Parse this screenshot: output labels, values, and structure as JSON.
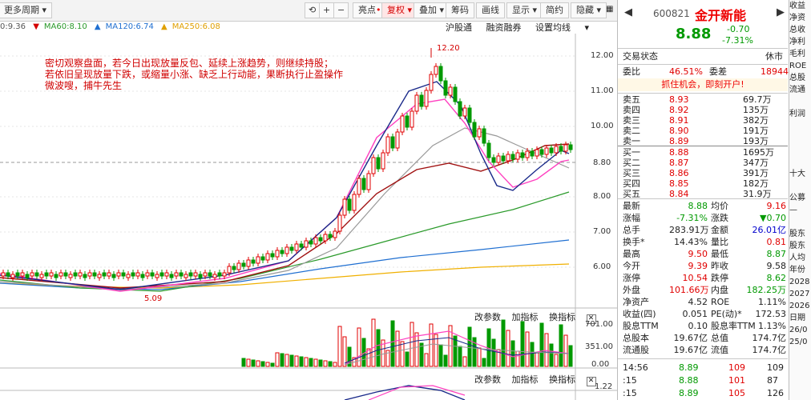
{
  "toolbar": {
    "period": "更多周期",
    "highlight": "亮点",
    "fuquan": "复权",
    "overlay": "叠加",
    "chips": "筹码",
    "draw": "画线",
    "display": "显示",
    "brief": "简约",
    "hide": "隐藏"
  },
  "ma_legend": {
    "ma_a": "0:9.36",
    "ma60": "MA60:8.10",
    "ma120": "MA120:6.74",
    "ma250": "MA250:6.08"
  },
  "tabs": {
    "hgt": "沪股通",
    "margin": "融资融券",
    "ma_settings": "设置均线"
  },
  "price_axis": [
    "12.00",
    "11.00",
    "10.00",
    "8.80",
    "8.00",
    "7.00",
    "6.00"
  ],
  "annotation": {
    "line1": "密切观察盘面，若今日出现放量反包、延续上涨趋势，则继续持股；",
    "line2": "若依旧呈现放量下跌，或缩量小涨、缺乏上行动能，果断执行止盈操作",
    "line3": "微波嗖，捕牛先生"
  },
  "high_label": "12.20",
  "low_label": "5.09",
  "sub1": {
    "params": "改参数",
    "add": "加指标",
    "switch": "换指标",
    "close": "✕",
    "axis": [
      "701.00",
      "351.00",
      "0.00"
    ]
  },
  "sub2": {
    "params": "改参数",
    "add": "加指标",
    "switch": "换指标",
    "close": "✕",
    "axis": [
      "1.22"
    ]
  },
  "stock": {
    "code": "600821",
    "name": "金开新能",
    "price": "8.88",
    "change": "-0.70",
    "pct": "-7.31%"
  },
  "trade": {
    "status_label": "交易状态",
    "status": "休市",
    "ratio_label": "委比",
    "ratio": "46.51%",
    "diff_label": "委差",
    "diff": "18944",
    "promo": "抓住机会，即刻开户!"
  },
  "asks": [
    {
      "l": "卖五",
      "p": "8.93",
      "v": "69.7万"
    },
    {
      "l": "卖四",
      "p": "8.92",
      "v": "135万"
    },
    {
      "l": "卖三",
      "p": "8.91",
      "v": "382万"
    },
    {
      "l": "卖二",
      "p": "8.90",
      "v": "191万"
    },
    {
      "l": "卖一",
      "p": "8.89",
      "v": "193万"
    }
  ],
  "bids": [
    {
      "l": "买一",
      "p": "8.88",
      "v": "1695万"
    },
    {
      "l": "买二",
      "p": "8.87",
      "v": "347万"
    },
    {
      "l": "买三",
      "p": "8.86",
      "v": "391万"
    },
    {
      "l": "买四",
      "p": "8.85",
      "v": "182万"
    },
    {
      "l": "买五",
      "p": "8.84",
      "v": "31.9万"
    }
  ],
  "stats": [
    [
      "最新",
      "8.88",
      "均价",
      "9.16"
    ],
    [
      "涨幅",
      "-7.31%",
      "涨跌",
      "▼0.70"
    ],
    [
      "总手",
      "283.91万",
      "金额",
      "26.01亿"
    ],
    [
      "换手*",
      "14.43%",
      "量比",
      "0.81"
    ],
    [
      "最高",
      "9.50",
      "最低",
      "8.87"
    ],
    [
      "今开",
      "9.39",
      "昨收",
      "9.58"
    ],
    [
      "涨停",
      "10.54",
      "跌停",
      "8.62"
    ],
    [
      "外盘",
      "101.66万",
      "内盘",
      "182.25万"
    ],
    [
      "净资产",
      "4.52",
      "ROE",
      "1.11%"
    ],
    [
      "收益(四)",
      "0.051",
      "PE(动)*",
      "172.53"
    ],
    [
      "股息TTM",
      "0.10",
      "股息率TTM",
      "1.13%"
    ],
    [
      "总股本",
      "19.67亿",
      "总值",
      "174.7亿"
    ],
    [
      "流通股",
      "19.67亿",
      "流值",
      "174.7亿"
    ]
  ],
  "ticks": [
    [
      "14:56",
      "8.89",
      "109",
      "109"
    ],
    [
      ":15",
      "8.88",
      "101",
      "87"
    ],
    [
      ":15",
      "8.89",
      "105",
      "126"
    ]
  ],
  "far": [
    "收益",
    "净资",
    "总收",
    "净利",
    "毛利",
    "ROE",
    "总股",
    "流通",
    "",
    "利润",
    "",
    "",
    "",
    "",
    "十大",
    "",
    "公募",
    "—",
    "",
    "股东",
    "股东",
    "人均",
    "年份",
    "2028",
    "2027",
    "2026",
    "日期",
    "26/0",
    "25/0"
  ]
}
